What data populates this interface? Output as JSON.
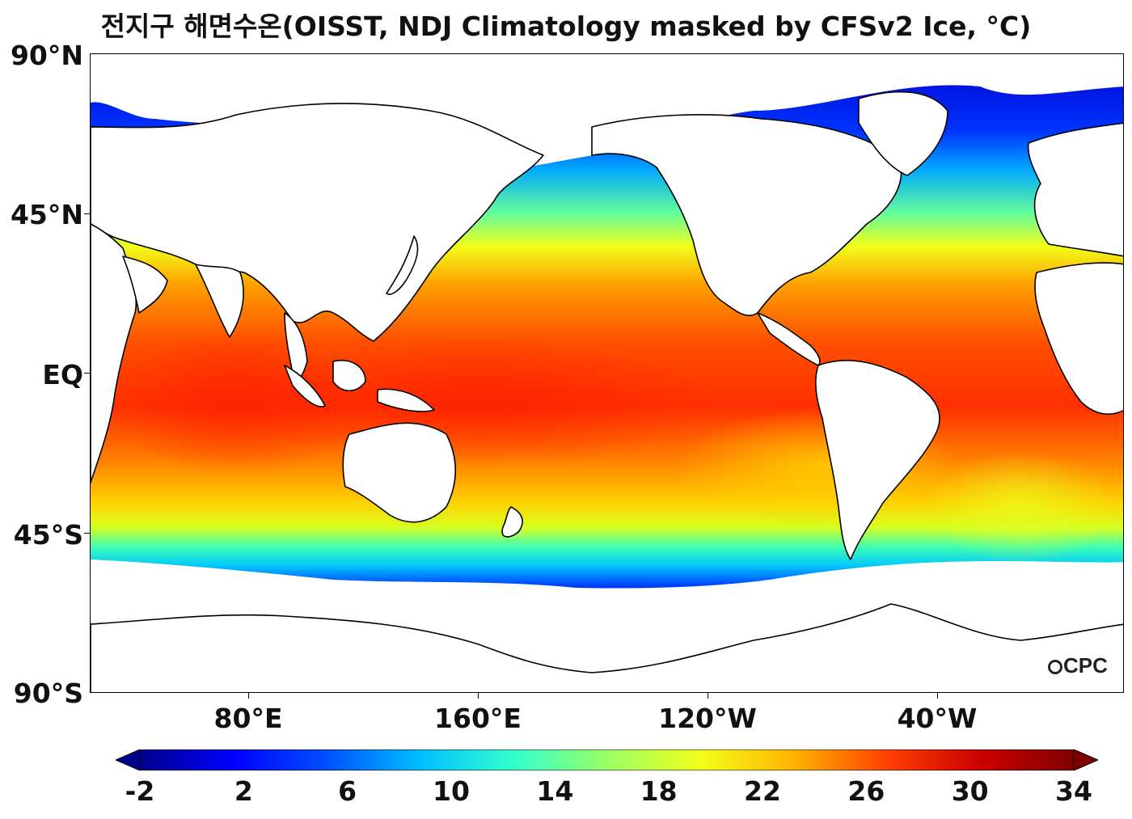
{
  "title": "전지구 해면수온(OISST, NDJ Climatology masked by CFSv2 Ice, °C)",
  "y_axis_labels": [
    "90°N",
    "45°N",
    "EQ",
    "45°S",
    "90°S"
  ],
  "x_axis_labels": [
    "80°E",
    "160°E",
    "120°W",
    "40°W"
  ],
  "colorbar": {
    "ticks": [
      "-2",
      "2",
      "6",
      "10",
      "14",
      "18",
      "22",
      "26",
      "30",
      "34"
    ],
    "colors": [
      "#00008b",
      "#0000ff",
      "#0050ff",
      "#00bfff",
      "#33ffcc",
      "#99ff66",
      "#f2ff1a",
      "#ffb300",
      "#ff4000",
      "#cc0000",
      "#800000"
    ],
    "extend": "both"
  },
  "logo": "CPC",
  "chart_data": {
    "type": "heatmap",
    "title": "전지구 해면수온(OISST, NDJ Climatology masked by CFSv2 Ice, °C)",
    "variable": "Sea surface temperature",
    "units": "°C",
    "projection": "equirectangular, centered on 180°",
    "lon_ticks": [
      "80°E",
      "160°E",
      "120°W",
      "40°W"
    ],
    "lat_ticks": [
      "90°N",
      "45°N",
      "EQ",
      "45°S",
      "90°S"
    ],
    "colorbar_range": [
      -2,
      34
    ],
    "colorbar_ticks": [
      -2,
      2,
      6,
      10,
      14,
      18,
      22,
      26,
      30,
      34
    ]
  }
}
